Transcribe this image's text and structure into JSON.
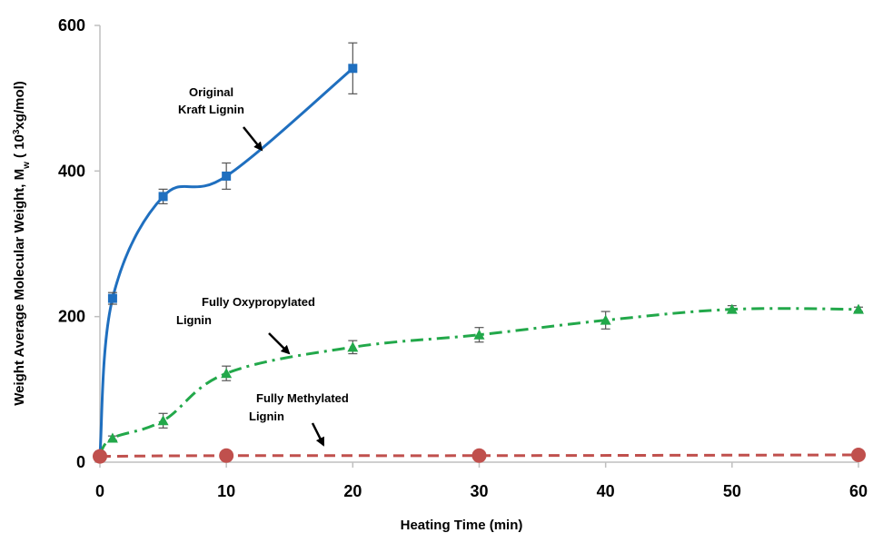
{
  "chart_data": {
    "type": "line",
    "title": "",
    "xlabel": "Heating Time  (min)",
    "ylabel": {
      "prefix": "Weight Average Molecular Weight, M",
      "sub": "w",
      "mid": " ( 10",
      "sup": "3",
      "suffix": "xg/mol)"
    },
    "xlim": [
      0,
      60
    ],
    "ylim": [
      0,
      600
    ],
    "xticks": [
      0,
      10,
      20,
      30,
      40,
      50,
      60
    ],
    "yticks": [
      0,
      200,
      400,
      600
    ],
    "grid": false,
    "legend": "none",
    "series": [
      {
        "key": "kraft",
        "color": "#1f6fbf",
        "marker": "square",
        "line_style": "solid",
        "x": [
          0,
          1,
          5,
          10,
          20
        ],
        "y": [
          10,
          225,
          365,
          393,
          541
        ],
        "error": [
          0,
          8,
          10,
          18,
          35
        ]
      },
      {
        "key": "oxypropylated",
        "color": "#22a84a",
        "marker": "triangle",
        "line_style": "dash-dot",
        "x": [
          0,
          1,
          5,
          10,
          20,
          30,
          40,
          50,
          60
        ],
        "y": [
          10,
          33,
          57,
          122,
          158,
          175,
          195,
          210,
          210
        ],
        "error": [
          0,
          3,
          10,
          10,
          9,
          10,
          12,
          5,
          3
        ]
      },
      {
        "key": "methylated",
        "color": "#c0504d",
        "marker": "circle",
        "line_style": "dashed",
        "x": [
          0,
          10,
          30,
          60
        ],
        "y": [
          8,
          9,
          9,
          10
        ],
        "error": [
          0,
          0,
          0,
          0
        ]
      }
    ],
    "annotations": [
      {
        "key": "kraft",
        "lines": [
          "Original",
          "Kraft  Lignin"
        ]
      },
      {
        "key": "oxypropylated",
        "lines": [
          "Fully  Oxypropylated",
          "Lignin"
        ]
      },
      {
        "key": "methylated",
        "lines": [
          "Fully  Methylated",
          "Lignin"
        ]
      }
    ]
  }
}
